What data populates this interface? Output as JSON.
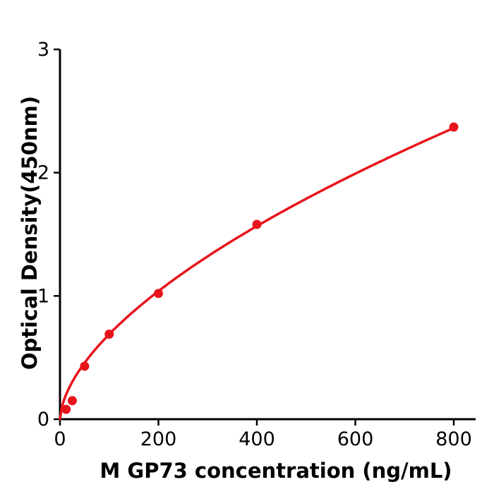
{
  "chart_data": {
    "type": "scatter",
    "title": "",
    "xlabel": "M  GP73 concentration (ng/mL)",
    "ylabel": "Optical Density(450nm)",
    "x": [
      12.5,
      25,
      50,
      100,
      200,
      400,
      800
    ],
    "y": [
      0.08,
      0.15,
      0.43,
      0.69,
      1.02,
      1.58,
      2.37
    ],
    "xticks": [
      "0",
      "200",
      "400",
      "600",
      "800"
    ],
    "yticks": [
      "0",
      "1",
      "2",
      "3"
    ],
    "xlim": [
      0,
      845
    ],
    "ylim": [
      0,
      3
    ],
    "grid": false,
    "legend_position": "none",
    "point_color": "#e8141c",
    "line_color": "#e8141c",
    "axis_color": "#000000",
    "fit_curve": {
      "model": "power",
      "coefficient": 0.045,
      "exponent": 0.5925,
      "x_range": [
        0,
        800
      ]
    }
  }
}
